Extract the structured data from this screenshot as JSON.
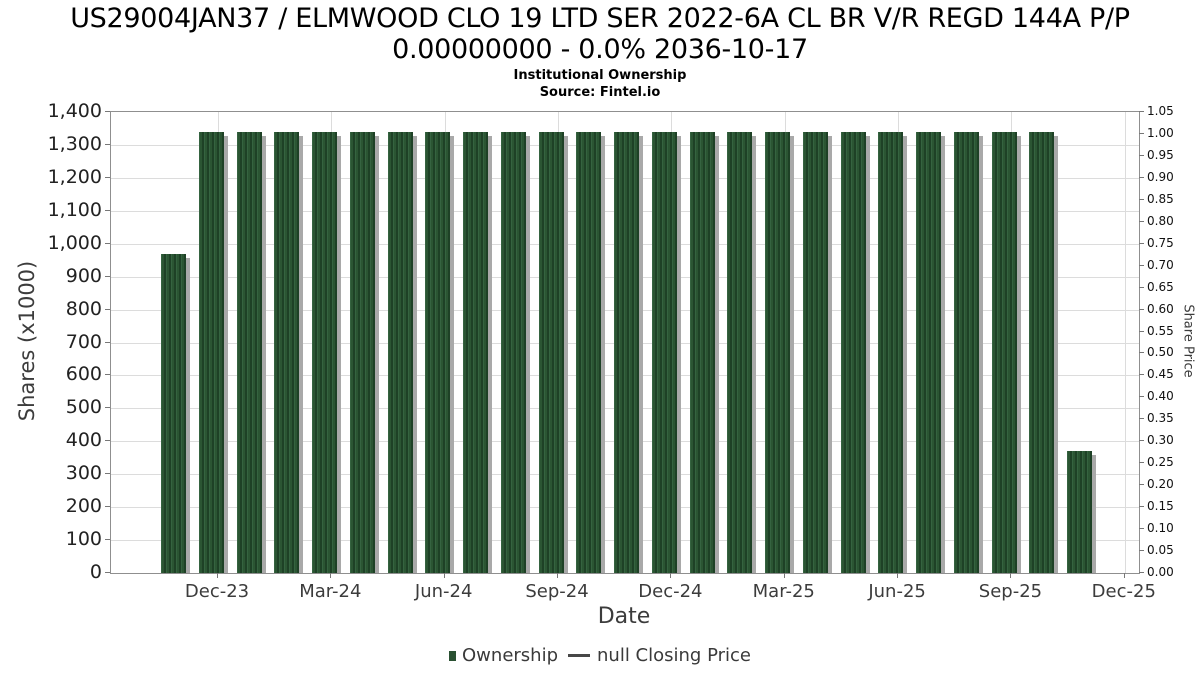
{
  "title_line1": "US29004JAN37 / ELMWOOD CLO 19 LTD SER 2022-6A CL BR V/R REGD 144A P/P",
  "title_line2": "0.00000000 - 0.0% 2036-10-17",
  "subtitle": "Institutional Ownership",
  "source": "Source: Fintel.io",
  "axes": {
    "left_label": "Shares (x1000)",
    "right_label": "Share Price",
    "x_label": "Date"
  },
  "legend": {
    "ownership_label": "Ownership",
    "price_label": "null Closing Price"
  },
  "colors": {
    "bar_green": "#2a5132",
    "bar_stripe_dark": "#1e4126",
    "bar_stripe_light": "#2b5533",
    "bar_shadow": "#a9a9a9",
    "grid": "#dcdcdc",
    "axis_spine": "#8f8f8f",
    "text_dark": "#3c3c3c"
  },
  "chart_data": {
    "type": "bar",
    "title": "US29004JAN37 / ELMWOOD CLO 19 LTD SER 2022-6A CL BR V/R REGD 144A P/P 0.00000000 - 0.0% 2036-10-17",
    "subtitle": "Institutional Ownership",
    "source": "Source: Fintel.io",
    "xlabel": "Date",
    "ylabel_left": "Shares (x1000)",
    "ylabel_right": "Share Price",
    "ylim_left": [
      0,
      1400
    ],
    "ylim_right": [
      0,
      1.05
    ],
    "grid": true,
    "legend_position": "bottom",
    "categories": [
      "Nov-23",
      "Dec-23",
      "Jan-24",
      "Feb-24",
      "Mar-24",
      "Apr-24",
      "May-24",
      "Jun-24",
      "Jul-24",
      "Aug-24",
      "Sep-24",
      "Oct-24",
      "Nov-24",
      "Dec-24",
      "Jan-25",
      "Feb-25",
      "Mar-25",
      "Apr-25",
      "May-25",
      "Jun-25",
      "Jul-25",
      "Aug-25",
      "Sep-25",
      "Oct-25",
      "Nov-25"
    ],
    "series": [
      {
        "name": "Ownership",
        "values": [
          970,
          1340,
          1340,
          1340,
          1340,
          1340,
          1340,
          1340,
          1340,
          1340,
          1340,
          1340,
          1340,
          1340,
          1340,
          1340,
          1340,
          1340,
          1340,
          1340,
          1340,
          1340,
          1340,
          1340,
          370
        ]
      },
      {
        "name": "null Closing Price",
        "values": []
      }
    ],
    "left_tick_values": [
      0,
      100,
      200,
      300,
      400,
      500,
      600,
      700,
      800,
      900,
      1000,
      1100,
      1200,
      1300,
      1400
    ],
    "left_tick_labels": [
      "0",
      "100",
      "200",
      "300",
      "400",
      "500",
      "600",
      "700",
      "800",
      "900",
      "1,000",
      "1,100",
      "1,200",
      "1,300",
      "1,400"
    ],
    "right_tick_values": [
      0,
      0.05,
      0.1,
      0.15,
      0.2,
      0.25,
      0.3,
      0.35,
      0.4,
      0.45,
      0.5,
      0.55,
      0.6,
      0.65,
      0.7,
      0.75,
      0.8,
      0.85,
      0.9,
      0.95,
      1.0,
      1.05
    ],
    "right_tick_labels": [
      "0.00",
      "0.05",
      "0.10",
      "0.15",
      "0.20",
      "0.25",
      "0.30",
      "0.35",
      "0.40",
      "0.45",
      "0.50",
      "0.55",
      "0.60",
      "0.65",
      "0.70",
      "0.75",
      "0.80",
      "0.85",
      "0.90",
      "0.95",
      "1.00",
      "1.05"
    ],
    "x_tick_labels": [
      "Dec-23",
      "Mar-24",
      "Jun-24",
      "Sep-24",
      "Dec-24",
      "Mar-25",
      "Jun-25",
      "Sep-25",
      "Dec-25"
    ]
  }
}
